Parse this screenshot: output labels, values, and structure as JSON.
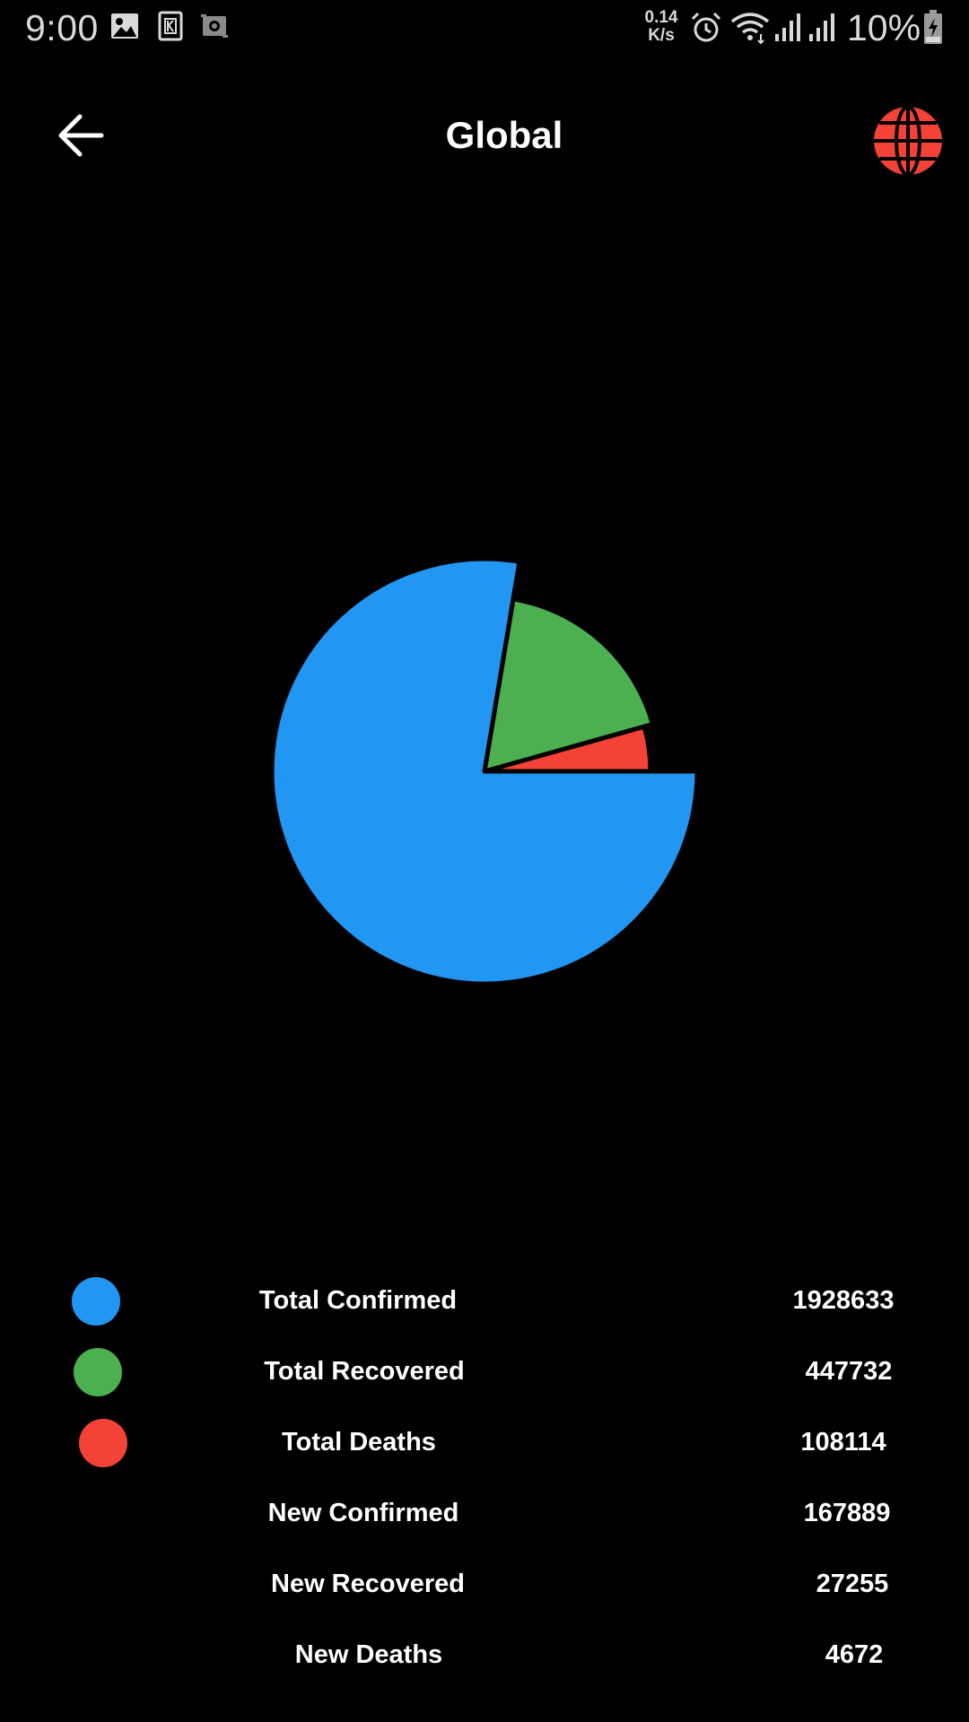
{
  "status_bar": {
    "time": "9:00",
    "net_speed_value": "0.14",
    "net_speed_unit": "K/s",
    "battery": "10%",
    "icons": [
      "gallery-icon",
      "k-app-icon",
      "screenshot-icon",
      "alarm-icon",
      "wifi-icon",
      "signal-icon",
      "signal-icon",
      "battery-charging-icon"
    ]
  },
  "header": {
    "title": "Global",
    "back_icon": "arrow-left-icon",
    "globe_icon": "globe-icon"
  },
  "colors": {
    "confirmed": "#2196F3",
    "recovered": "#4CAF50",
    "deaths": "#F44336",
    "globe": "#F44336",
    "background": "#000000"
  },
  "chart_data": {
    "type": "pie",
    "title": "",
    "slices": [
      {
        "label": "Total Confirmed",
        "value": 1928633,
        "color": "#2196F3"
      },
      {
        "label": "Total Recovered",
        "value": 447732,
        "color": "#4CAF50"
      },
      {
        "label": "Total Deaths",
        "value": 108114,
        "color": "#F44336"
      }
    ]
  },
  "stats": [
    {
      "label": "Total Confirmed",
      "value": "1928633",
      "color": "#2196F3"
    },
    {
      "label": "Total Recovered",
      "value": "447732",
      "color": "#4CAF50"
    },
    {
      "label": "Total Deaths",
      "value": "108114",
      "color": "#F44336"
    },
    {
      "label": "New Confirmed",
      "value": "167889",
      "color": ""
    },
    {
      "label": "New Recovered",
      "value": "27255",
      "color": ""
    },
    {
      "label": "New Deaths",
      "value": "4672",
      "color": ""
    }
  ]
}
